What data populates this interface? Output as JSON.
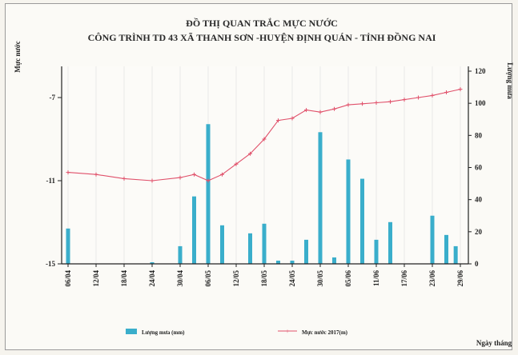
{
  "chart_data": {
    "type": "bar+line",
    "title_line1": "ĐỒ THỊ QUAN TRẮC MỰC NƯỚC",
    "title_line2": "CÔNG TRÌNH TD 43 XÃ THANH SƠN -HUYỆN ĐỊNH QUÁN - TỈNH ĐỒNG NAI",
    "y_left_label": "Mực nước",
    "y_right_label": "Lượng mưa",
    "x_label": "Ngày tháng",
    "y_left_ticks": [
      "-7",
      "-11",
      "-15"
    ],
    "y_left_range": [
      -15,
      -5.5
    ],
    "y_right_ticks": [
      "0",
      "20",
      "40",
      "60",
      "80",
      "100",
      "120"
    ],
    "y_right_range": [
      0,
      120
    ],
    "x_ticks": [
      "06/04",
      "12/04",
      "18/04",
      "24/04",
      "30/04",
      "06/05",
      "12/05",
      "18/05",
      "24/05",
      "30/05",
      "05/06",
      "11/06",
      "17/06",
      "23/06",
      "29/06"
    ],
    "x_day_range": [
      0,
      84
    ],
    "x_tick_days": [
      0,
      6,
      12,
      18,
      24,
      30,
      36,
      42,
      48,
      54,
      60,
      66,
      72,
      78,
      84
    ],
    "rain": {
      "name": "Lượng mưa (mm)",
      "color": "#3aaecb",
      "days": [
        0,
        18,
        24,
        27,
        30,
        33,
        39,
        42,
        45,
        48,
        51,
        54,
        57,
        60,
        63,
        66,
        69,
        78,
        81,
        83
      ],
      "values": [
        22,
        1,
        11,
        42,
        87,
        24,
        19,
        25,
        2,
        2,
        15,
        82,
        4,
        65,
        53,
        15,
        26,
        30,
        18,
        11
      ]
    },
    "water": {
      "name": "Mực nước 2017(m)",
      "color": "#e0506a",
      "days": [
        0,
        6,
        12,
        18,
        24,
        27,
        30,
        33,
        36,
        39,
        42,
        45,
        48,
        51,
        54,
        57,
        60,
        63,
        66,
        69,
        72,
        75,
        78,
        81,
        84
      ],
      "values": [
        -10.6,
        -10.7,
        -10.9,
        -11.0,
        -10.85,
        -10.7,
        -11.0,
        -10.7,
        -10.2,
        -9.7,
        -9.0,
        -8.1,
        -8.0,
        -7.6,
        -7.7,
        -7.55,
        -7.35,
        -7.3,
        -7.25,
        -7.2,
        -7.1,
        -7.0,
        -6.9,
        -6.75,
        -6.6
      ]
    }
  }
}
